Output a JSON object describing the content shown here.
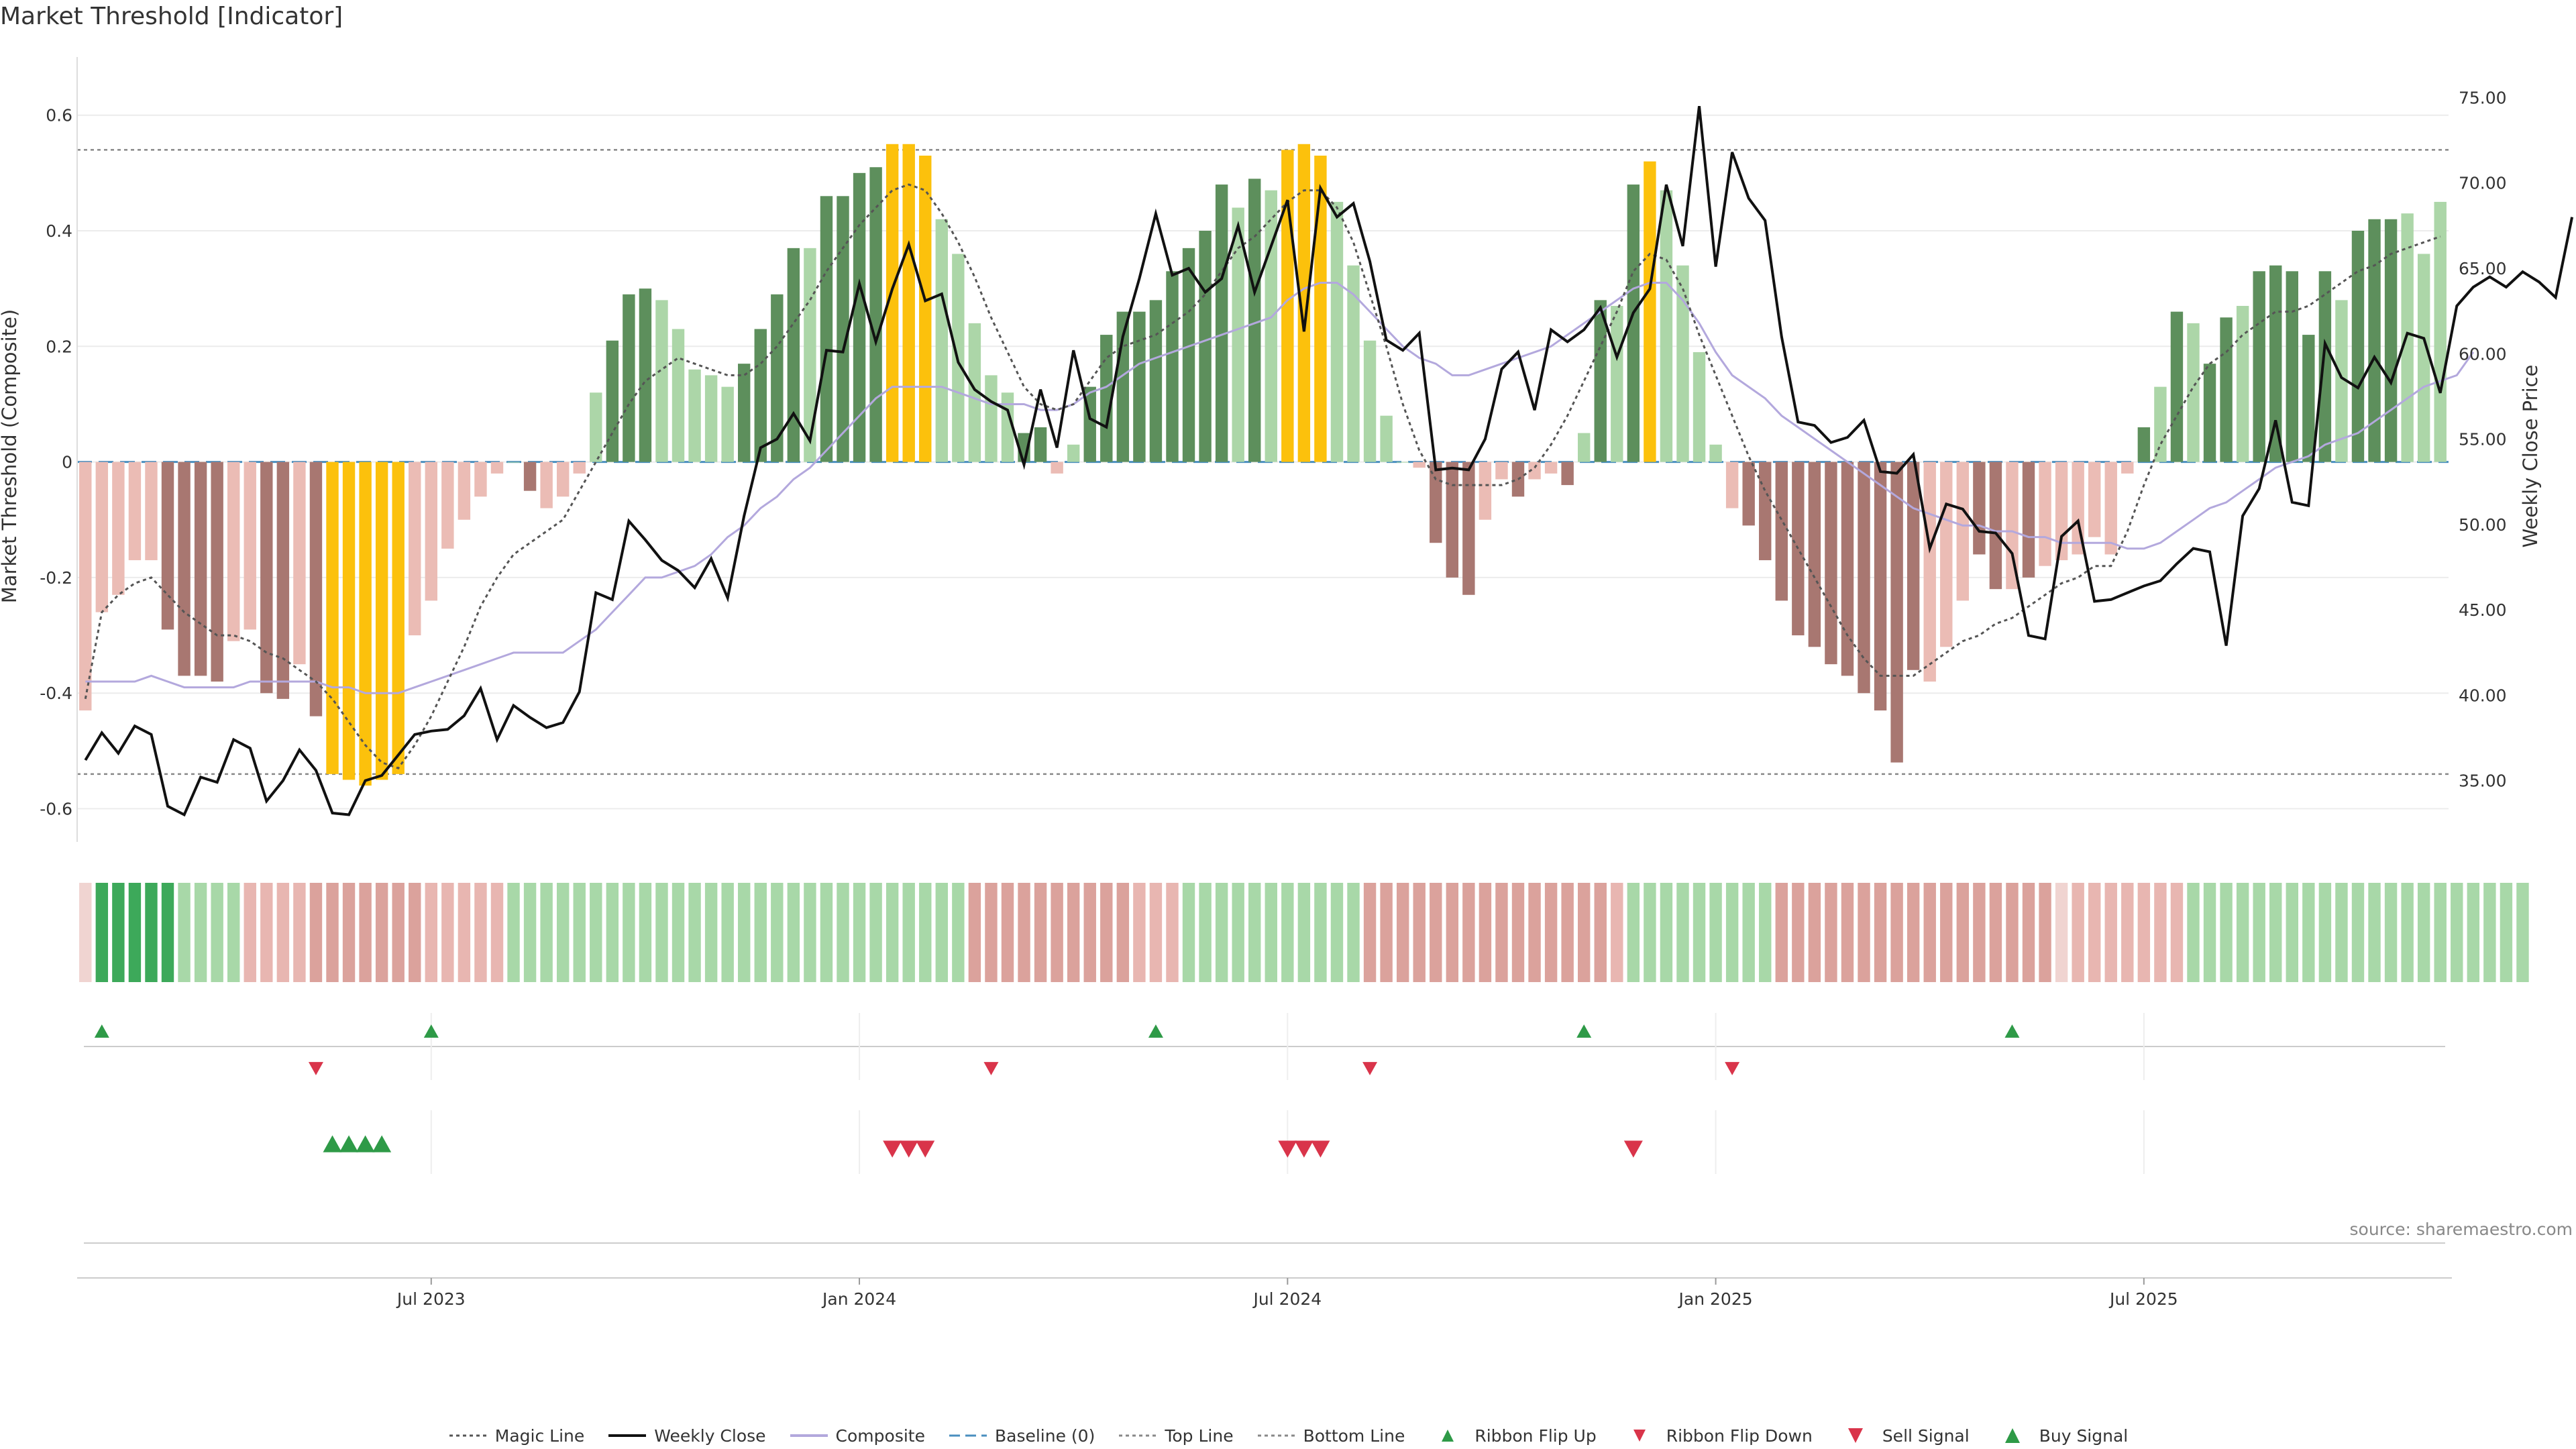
{
  "page": {
    "title": "Market Threshold [Indicator]",
    "source": "source: sharemaestro.com"
  },
  "chart_data": {
    "type": "bar",
    "title": "Market Threshold [Indicator]",
    "ylabel_left": "Market Threshold (Composite)",
    "ylabel_right": "Weekly Close Price",
    "ylim_left": [
      -0.64,
      0.66
    ],
    "ylim_right": [
      32.0,
      76.0
    ],
    "left_ticks": [
      "-0.6",
      "-0.4",
      "-0.2",
      "0",
      "0.2",
      "0.4",
      "0.6"
    ],
    "right_ticks": [
      "35.00",
      "40.00",
      "45.00",
      "50.00",
      "55.00",
      "60.00",
      "65.00",
      "70.00",
      "75.00"
    ],
    "x_ticks": [
      "Jul 2023",
      "Jan 2024",
      "Jul 2024",
      "Jan 2025",
      "Jul 2025"
    ],
    "x_tick_weeks": [
      21,
      47,
      73,
      99,
      125
    ],
    "top_line": 0.54,
    "bottom_line": -0.54,
    "baseline": 0,
    "grid": true,
    "legend_position": "bottom",
    "composite_bars": [
      -0.43,
      -0.26,
      -0.23,
      -0.17,
      -0.17,
      -0.29,
      -0.37,
      -0.37,
      -0.38,
      -0.31,
      -0.29,
      -0.4,
      -0.41,
      -0.35,
      -0.44,
      -0.54,
      -0.55,
      -0.56,
      -0.55,
      -0.54,
      -0.3,
      -0.24,
      -0.15,
      -0.1,
      -0.06,
      -0.02,
      0,
      -0.05,
      -0.08,
      -0.06,
      -0.02,
      0.12,
      0.21,
      0.29,
      0.3,
      0.28,
      0.23,
      0.16,
      0.15,
      0.13,
      0.17,
      0.23,
      0.29,
      0.37,
      0.37,
      0.46,
      0.46,
      0.5,
      0.51,
      0.55,
      0.55,
      0.53,
      0.42,
      0.36,
      0.24,
      0.15,
      0.12,
      0.05,
      0.06,
      -0.02,
      0.03,
      0.13,
      0.22,
      0.26,
      0.26,
      0.28,
      0.33,
      0.37,
      0.4,
      0.48,
      0.44,
      0.49,
      0.47,
      0.54,
      0.55,
      0.53,
      0.45,
      0.34,
      0.21,
      0.08,
      0,
      -0.01,
      -0.14,
      -0.2,
      -0.23,
      -0.1,
      -0.03,
      -0.06,
      -0.03,
      -0.02,
      -0.04,
      0.05,
      0.28,
      0.27,
      0.48,
      0.52,
      0.47,
      0.34,
      0.19,
      0.03,
      -0.08,
      -0.11,
      -0.17,
      -0.24,
      -0.3,
      -0.32,
      -0.35,
      -0.37,
      -0.4,
      -0.43,
      -0.52,
      -0.36,
      -0.38,
      -0.32,
      -0.24,
      -0.16,
      -0.22,
      -0.22,
      -0.2,
      -0.18,
      -0.17,
      -0.16,
      -0.13,
      -0.16,
      -0.02,
      0.06,
      0.13,
      0.26,
      0.24,
      0.17,
      0.25,
      0.27,
      0.33,
      0.34,
      0.33,
      0.22,
      0.33,
      0.28,
      0.4,
      0.42,
      0.42,
      0.43,
      0.36,
      0.45
    ],
    "bar_colors_note": "yellow when beyond top/bottom line; dark/light green positive, dark/light red negative",
    "bar_tones": [
      "l",
      "l",
      "l",
      "l",
      "l",
      "d",
      "d",
      "d",
      "d",
      "l",
      "l",
      "d",
      "d",
      "l",
      "d",
      "y",
      "y",
      "y",
      "y",
      "y",
      "l",
      "l",
      "l",
      "l",
      "l",
      "l",
      "l",
      "d",
      "l",
      "l",
      "l",
      "l",
      "d",
      "d",
      "d",
      "l",
      "l",
      "l",
      "l",
      "l",
      "d",
      "d",
      "d",
      "d",
      "l",
      "d",
      "d",
      "d",
      "d",
      "y",
      "y",
      "y",
      "l",
      "l",
      "l",
      "l",
      "l",
      "d",
      "d",
      "l",
      "l",
      "d",
      "d",
      "d",
      "d",
      "d",
      "d",
      "d",
      "d",
      "d",
      "l",
      "d",
      "l",
      "y",
      "y",
      "y",
      "l",
      "l",
      "l",
      "l",
      "l",
      "l",
      "d",
      "d",
      "d",
      "l",
      "l",
      "d",
      "l",
      "l",
      "d",
      "l",
      "d",
      "l",
      "d",
      "y",
      "l",
      "l",
      "l",
      "l",
      "l",
      "d",
      "d",
      "d",
      "d",
      "d",
      "d",
      "d",
      "d",
      "d",
      "d",
      "d",
      "l",
      "l",
      "l",
      "d",
      "d",
      "l",
      "d",
      "l",
      "l",
      "l",
      "l",
      "l",
      "l",
      "d",
      "l",
      "d",
      "l",
      "d",
      "d",
      "l",
      "d",
      "d",
      "d",
      "d",
      "d",
      "l",
      "d",
      "d",
      "d",
      "l",
      "l",
      "l",
      "d"
    ],
    "weekly_close": [
      36.2,
      37.8,
      36.6,
      38.2,
      37.7,
      33.5,
      33.0,
      35.2,
      34.9,
      37.4,
      36.9,
      33.8,
      35.0,
      36.8,
      35.6,
      33.1,
      33.0,
      35.0,
      35.3,
      36.5,
      37.7,
      37.9,
      38.0,
      38.8,
      40.4,
      37.4,
      39.4,
      38.7,
      38.1,
      38.4,
      40.2,
      46.0,
      45.6,
      50.2,
      49.1,
      47.9,
      47.3,
      46.3,
      48.0,
      45.7,
      50.5,
      54.5,
      55.0,
      56.5,
      54.9,
      60.2,
      60.1,
      64.1,
      60.7,
      63.8,
      66.4,
      63.1,
      63.5,
      59.5,
      57.9,
      57.2,
      56.7,
      53.5,
      57.9,
      54.5,
      60.2,
      56.2,
      55.7,
      61.0,
      64.4,
      68.2,
      64.6,
      65.0,
      63.6,
      64.4,
      67.5,
      63.6,
      66.3,
      69.0,
      61.3,
      69.7,
      68.0,
      68.8,
      65.4,
      60.8,
      60.2,
      61.2,
      53.2,
      53.3,
      53.2,
      55.0,
      59.1,
      60.1,
      56.7,
      61.4,
      60.7,
      61.4,
      62.7,
      59.8,
      62.4,
      63.8,
      69.9,
      66.3,
      74.5,
      65.1,
      71.8,
      69.1,
      67.8,
      61.0,
      56.0,
      55.8,
      54.8,
      55.1,
      56.1,
      53.1,
      53.0,
      54.1,
      48.6,
      51.2,
      50.9,
      49.6,
      49.5,
      48.3,
      43.5,
      43.3,
      49.3,
      50.2,
      45.5,
      45.6,
      46.0,
      46.4,
      46.7,
      47.7,
      48.6,
      48.4,
      42.9,
      50.5,
      52.1,
      56.1,
      51.3,
      51.1,
      60.6,
      58.6,
      58.0,
      59.8,
      58.3,
      61.2,
      60.9,
      57.7,
      62.8,
      63.9,
      64.5,
      63.9,
      64.8,
      64.2,
      63.3,
      68.0
    ],
    "magic_line": [
      -0.41,
      -0.26,
      -0.23,
      -0.21,
      -0.2,
      -0.23,
      -0.26,
      -0.28,
      -0.3,
      -0.3,
      -0.31,
      -0.33,
      -0.34,
      -0.36,
      -0.38,
      -0.41,
      -0.45,
      -0.49,
      -0.52,
      -0.53,
      -0.49,
      -0.44,
      -0.38,
      -0.32,
      -0.25,
      -0.2,
      -0.16,
      -0.14,
      -0.12,
      -0.1,
      -0.05,
      0,
      0.05,
      0.1,
      0.14,
      0.16,
      0.18,
      0.17,
      0.16,
      0.15,
      0.15,
      0.17,
      0.2,
      0.24,
      0.28,
      0.33,
      0.37,
      0.41,
      0.44,
      0.47,
      0.48,
      0.47,
      0.43,
      0.38,
      0.32,
      0.25,
      0.19,
      0.13,
      0.1,
      0.09,
      0.1,
      0.14,
      0.18,
      0.2,
      0.21,
      0.22,
      0.24,
      0.26,
      0.29,
      0.33,
      0.37,
      0.39,
      0.42,
      0.45,
      0.47,
      0.47,
      0.44,
      0.38,
      0.29,
      0.2,
      0.1,
      0.02,
      -0.03,
      -0.04,
      -0.04,
      -0.04,
      -0.04,
      -0.03,
      -0.01,
      0.03,
      0.08,
      0.14,
      0.2,
      0.26,
      0.33,
      0.36,
      0.35,
      0.3,
      0.22,
      0.15,
      0.08,
      0.01,
      -0.05,
      -0.1,
      -0.15,
      -0.2,
      -0.25,
      -0.3,
      -0.34,
      -0.37,
      -0.37,
      -0.37,
      -0.35,
      -0.33,
      -0.31,
      -0.3,
      -0.28,
      -0.27,
      -0.25,
      -0.23,
      -0.21,
      -0.2,
      -0.18,
      -0.18,
      -0.12,
      -0.04,
      0.03,
      0.08,
      0.13,
      0.17,
      0.19,
      0.22,
      0.24,
      0.26,
      0.26,
      0.27,
      0.29,
      0.31,
      0.33,
      0.34,
      0.36,
      0.37,
      0.38,
      0.39
    ],
    "composite_line": [
      -0.38,
      -0.38,
      -0.38,
      -0.38,
      -0.37,
      -0.38,
      -0.39,
      -0.39,
      -0.39,
      -0.39,
      -0.38,
      -0.38,
      -0.38,
      -0.38,
      -0.38,
      -0.39,
      -0.39,
      -0.4,
      -0.4,
      -0.4,
      -0.39,
      -0.38,
      -0.37,
      -0.36,
      -0.35,
      -0.34,
      -0.33,
      -0.33,
      -0.33,
      -0.33,
      -0.31,
      -0.29,
      -0.26,
      -0.23,
      -0.2,
      -0.2,
      -0.19,
      -0.18,
      -0.16,
      -0.13,
      -0.11,
      -0.08,
      -0.06,
      -0.03,
      -0.01,
      0.02,
      0.05,
      0.08,
      0.11,
      0.13,
      0.13,
      0.13,
      0.13,
      0.12,
      0.11,
      0.1,
      0.1,
      0.1,
      0.09,
      0.09,
      0.1,
      0.12,
      0.13,
      0.15,
      0.17,
      0.18,
      0.19,
      0.2,
      0.21,
      0.22,
      0.23,
      0.24,
      0.25,
      0.28,
      0.3,
      0.31,
      0.31,
      0.29,
      0.26,
      0.23,
      0.2,
      0.18,
      0.17,
      0.15,
      0.15,
      0.16,
      0.17,
      0.18,
      0.19,
      0.2,
      0.22,
      0.24,
      0.26,
      0.28,
      0.3,
      0.31,
      0.31,
      0.28,
      0.24,
      0.19,
      0.15,
      0.13,
      0.11,
      0.08,
      0.06,
      0.04,
      0.02,
      0,
      -0.02,
      -0.04,
      -0.06,
      -0.08,
      -0.09,
      -0.1,
      -0.11,
      -0.11,
      -0.12,
      -0.12,
      -0.13,
      -0.13,
      -0.14,
      -0.14,
      -0.14,
      -0.14,
      -0.15,
      -0.15,
      -0.14,
      -0.12,
      -0.1,
      -0.08,
      -0.07,
      -0.05,
      -0.03,
      -0.01,
      0,
      0.01,
      0.03,
      0.04,
      0.05,
      0.07,
      0.09,
      0.11,
      0.13,
      0.14,
      0.15,
      0.19
    ],
    "ribbon": [
      "f",
      "g",
      "g",
      "g",
      "g",
      "g",
      "m",
      "m",
      "m",
      "m",
      "p",
      "p",
      "p",
      "p",
      "r",
      "r",
      "r",
      "r",
      "r",
      "r",
      "r",
      "p",
      "p",
      "p",
      "p",
      "p",
      "m",
      "m",
      "m",
      "m",
      "m",
      "m",
      "m",
      "m",
      "m",
      "m",
      "m",
      "m",
      "m",
      "m",
      "m",
      "m",
      "m",
      "m",
      "m",
      "m",
      "m",
      "m",
      "m",
      "m",
      "m",
      "m",
      "m",
      "m",
      "r",
      "r",
      "r",
      "r",
      "r",
      "r",
      "r",
      "r",
      "r",
      "r",
      "p",
      "p",
      "p",
      "m",
      "m",
      "m",
      "m",
      "m",
      "m",
      "m",
      "m",
      "m",
      "m",
      "m",
      "r",
      "r",
      "r",
      "r",
      "r",
      "r",
      "r",
      "r",
      "r",
      "r",
      "r",
      "r",
      "r",
      "r",
      "r",
      "p",
      "m",
      "m",
      "m",
      "m",
      "m",
      "m",
      "m",
      "m",
      "m",
      "r",
      "r",
      "r",
      "r",
      "r",
      "r",
      "r",
      "r",
      "r",
      "r",
      "r",
      "r",
      "r",
      "r",
      "r",
      "r",
      "r",
      "f",
      "p",
      "p",
      "p",
      "p",
      "p",
      "p",
      "p",
      "m",
      "m",
      "m",
      "m",
      "m",
      "m",
      "m",
      "m",
      "m",
      "m",
      "m",
      "m",
      "m",
      "m",
      "m",
      "m",
      "m",
      "m",
      "m",
      "m",
      "m"
    ],
    "ribbon_flip_up_weeks": [
      1,
      21,
      65,
      91,
      117
    ],
    "ribbon_flip_down_weeks": [
      14,
      55,
      78,
      100
    ],
    "buy_signal_weeks": [
      15,
      16,
      17,
      18
    ],
    "sell_signal_weeks": [
      49,
      50,
      51,
      73,
      74,
      75,
      94
    ],
    "colors": {
      "bar_dark_green": "#5d8f5c",
      "bar_light_green": "#acd6a8",
      "bar_dark_red": "#a87771",
      "bar_light_red": "#ebbcb5",
      "bar_yellow": "#fcc10c",
      "close": "#111111",
      "composite": "#b3a8dd",
      "magic": "#555555",
      "baseline": "#4a8fbf",
      "threshold": "#888888",
      "up": "#2e9a47",
      "down": "#d9344a"
    }
  },
  "legend": [
    {
      "label": "Magic Line",
      "kind": "dotted",
      "color": "#555555"
    },
    {
      "label": "Weekly Close",
      "kind": "solid",
      "color": "#111111"
    },
    {
      "label": "Composite",
      "kind": "solid",
      "color": "#b3a8dd"
    },
    {
      "label": "Baseline (0)",
      "kind": "dashed",
      "color": "#4a8fbf"
    },
    {
      "label": "Top Line",
      "kind": "dotted",
      "color": "#888888"
    },
    {
      "label": "Bottom Line",
      "kind": "dotted",
      "color": "#888888"
    },
    {
      "label": "Ribbon Flip Up",
      "kind": "tri-up-small",
      "color": "#2e9a47"
    },
    {
      "label": "Ribbon Flip Down",
      "kind": "tri-down-small",
      "color": "#d9344a"
    },
    {
      "label": "Sell Signal",
      "kind": "tri-down",
      "color": "#d9344a"
    },
    {
      "label": "Buy Signal",
      "kind": "tri-up",
      "color": "#2e9a47"
    }
  ]
}
